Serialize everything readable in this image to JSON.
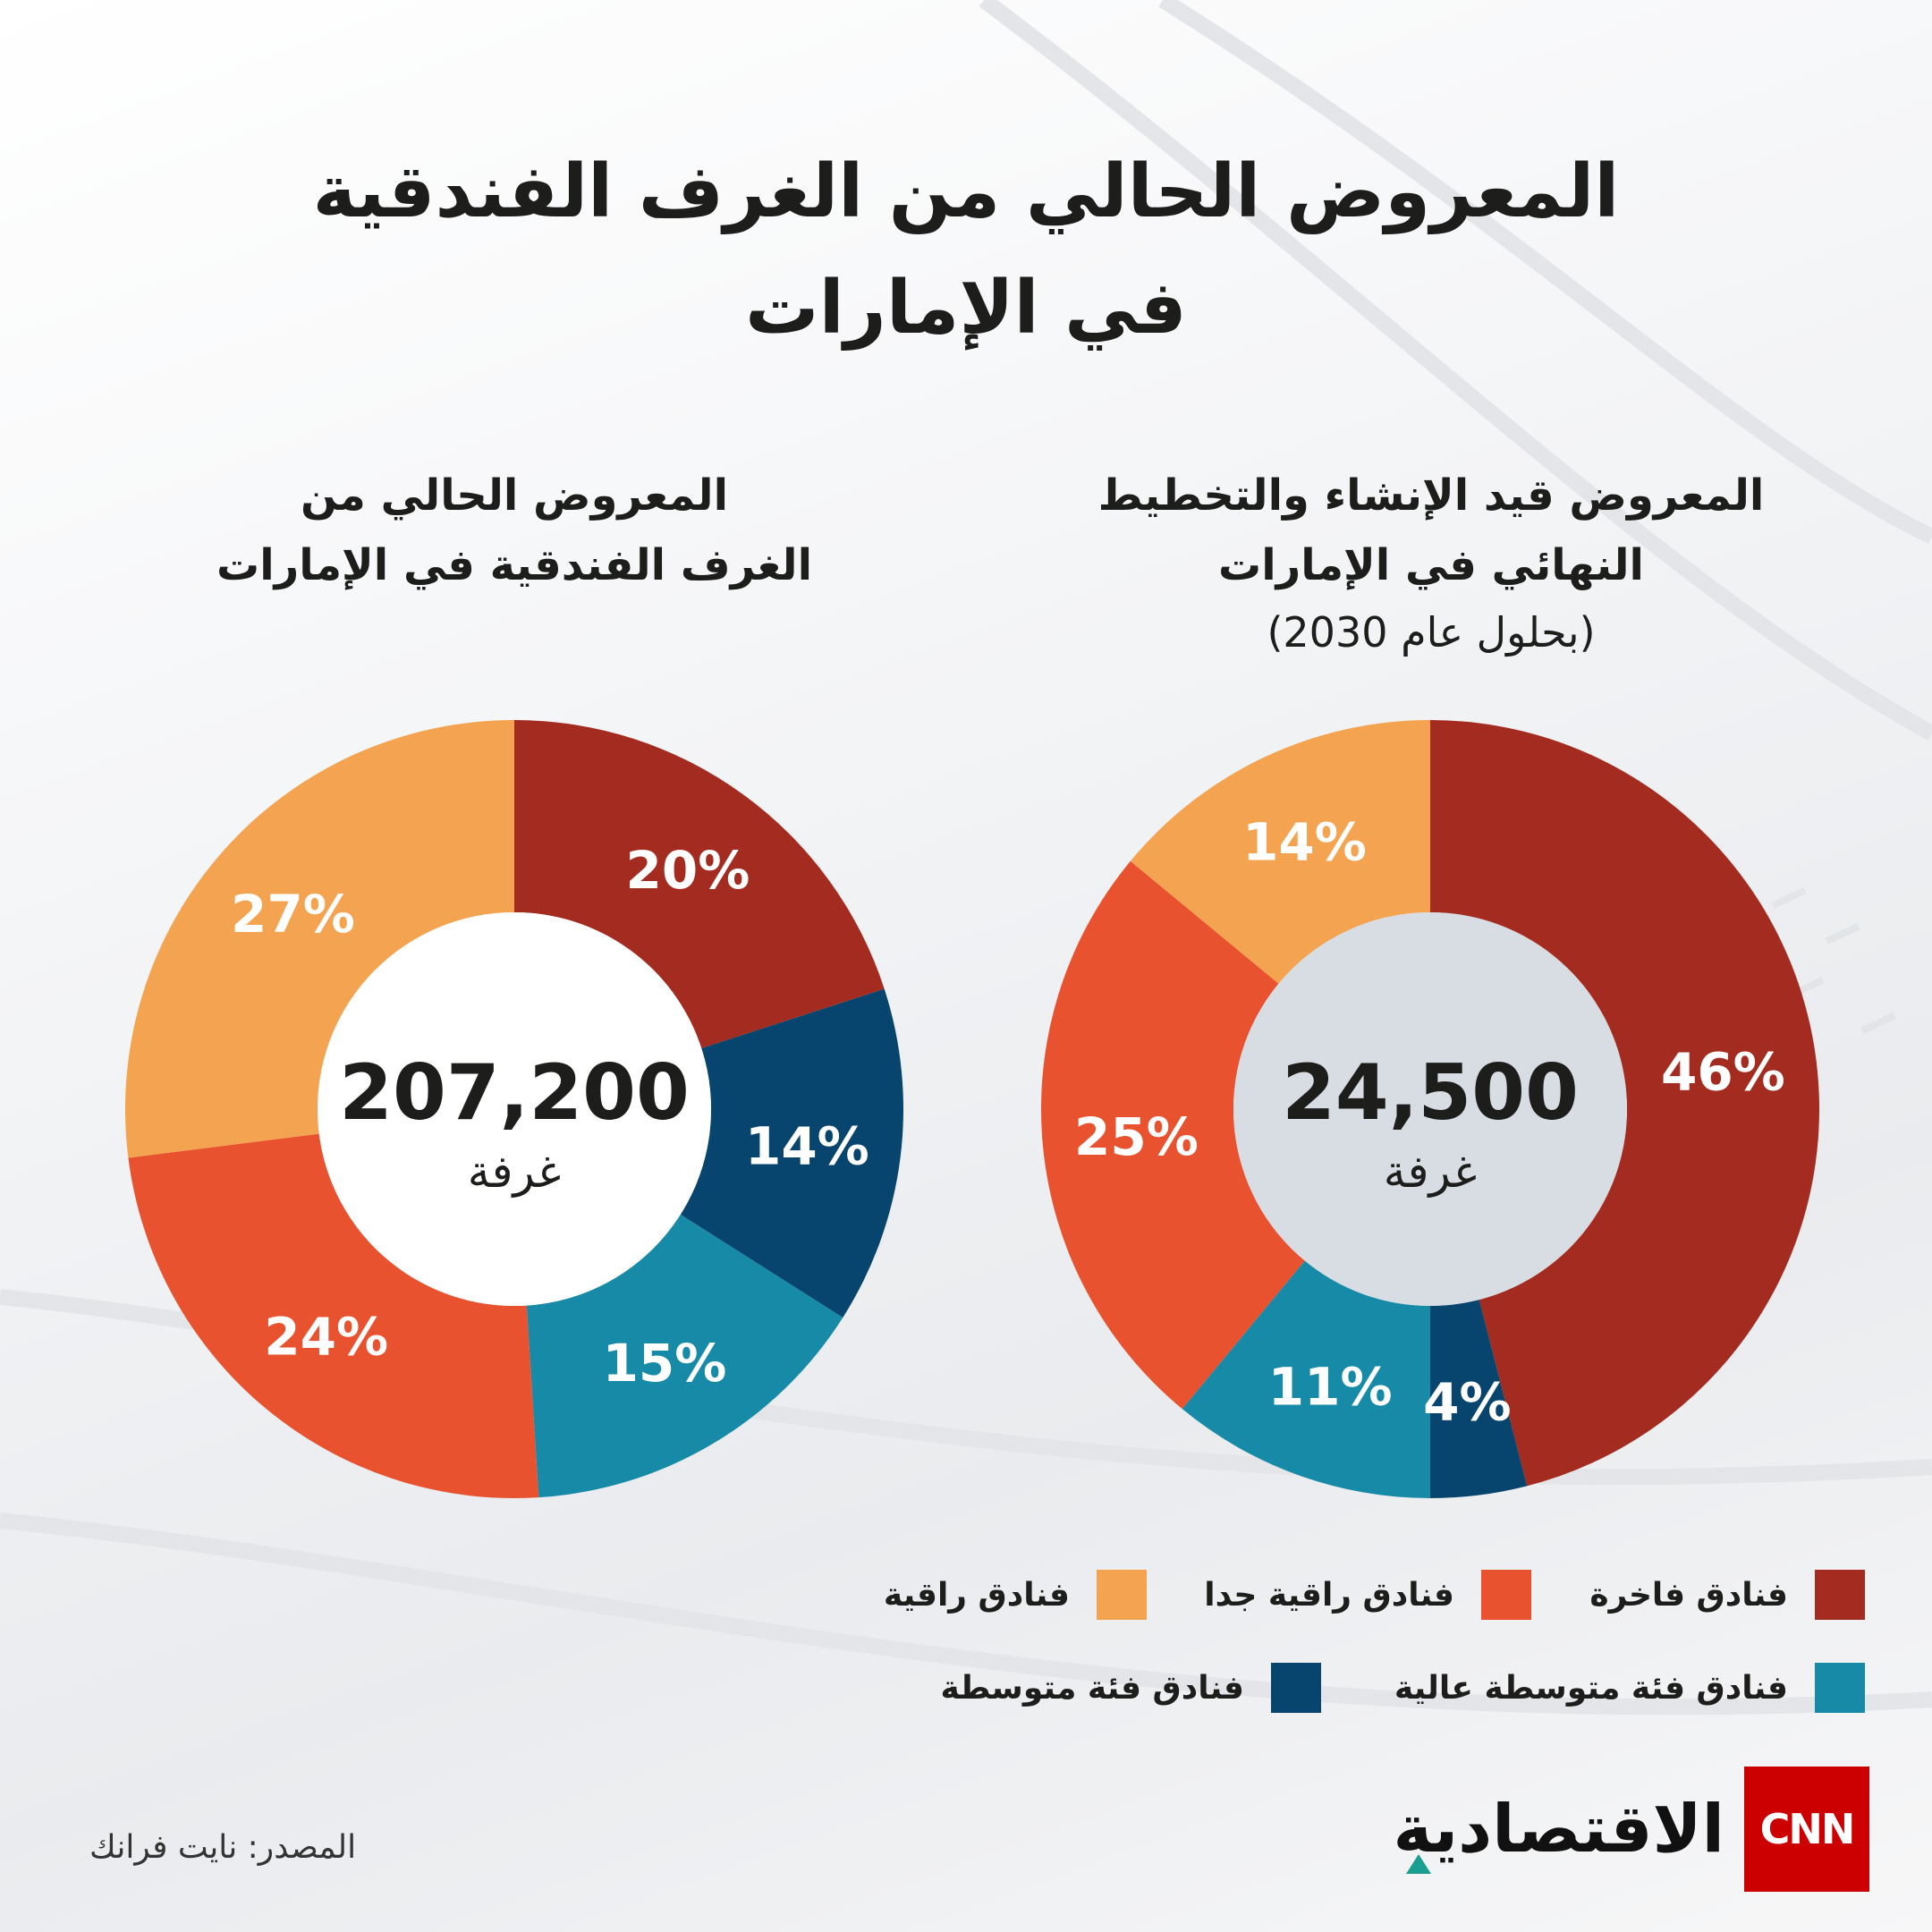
{
  "title": {
    "line1": "المعروض الحالي من الغرف الفندقية",
    "line2": "في الإمارات"
  },
  "colors": {
    "luxury": "#a32b20",
    "upper_upscale": "#e8522f",
    "upscale": "#f4a350",
    "upper_midscale": "#168aa7",
    "midscale": "#07456f"
  },
  "chart_data": [
    {
      "type": "pie",
      "subtype": "donut",
      "title_line1": "المعروض الحالي من",
      "title_line2": "الغرف الفندقية في الإمارات",
      "center_value": "207,200",
      "center_unit": "غرفة",
      "slices": [
        {
          "category": "فنادق فاخرة",
          "value": 20,
          "label": "20%",
          "color": "#a32b20"
        },
        {
          "category": "فنادق فئة متوسطة",
          "value": 14,
          "label": "14%",
          "color": "#07456f"
        },
        {
          "category": "فنادق فئة متوسطة عالية",
          "value": 15,
          "label": "15%",
          "color": "#168aa7"
        },
        {
          "category": "فنادق راقية جدا",
          "value": 24,
          "label": "24%",
          "color": "#e8522f"
        },
        {
          "category": "فنادق راقية",
          "value": 27,
          "label": "27%",
          "color": "#f4a350"
        }
      ]
    },
    {
      "type": "pie",
      "subtype": "donut",
      "title_line1": "المعروض قيد الإنشاء والتخطيط",
      "title_line2": "النهائي في الإمارات",
      "title_line3": "(بحلول عام 2030)",
      "center_value": "24,500",
      "center_unit": "غرفة",
      "slices": [
        {
          "category": "فنادق فاخرة",
          "value": 46,
          "label": "46%",
          "color": "#a32b20"
        },
        {
          "category": "فنادق فئة متوسطة",
          "value": 4,
          "label": "4%",
          "color": "#07456f"
        },
        {
          "category": "فنادق فئة متوسطة عالية",
          "value": 11,
          "label": "11%",
          "color": "#168aa7"
        },
        {
          "category": "فنادق راقية جدا",
          "value": 25,
          "label": "25%",
          "color": "#e8522f"
        },
        {
          "category": "فنادق راقية",
          "value": 14,
          "label": "14%",
          "color": "#f4a350"
        }
      ]
    }
  ],
  "legend": [
    {
      "label": "فنادق فاخرة",
      "color": "#a32b20"
    },
    {
      "label": "فنادق راقية جدا",
      "color": "#e8522f"
    },
    {
      "label": "فنادق راقية",
      "color": "#f4a350"
    },
    {
      "label": "فنادق فئة متوسطة عالية",
      "color": "#168aa7"
    },
    {
      "label": "فنادق فئة متوسطة",
      "color": "#07456f"
    }
  ],
  "source": "المصدر: نايت فرانك",
  "logo": {
    "cnn": "CNN",
    "word": "الاقتصادية"
  }
}
